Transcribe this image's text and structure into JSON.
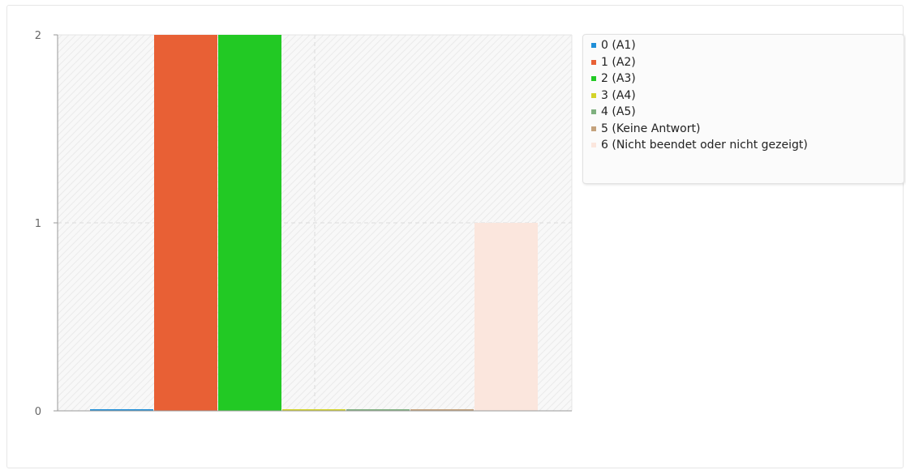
{
  "chart_data": {
    "type": "bar",
    "categories": [
      "0 (A1)",
      "1 (A2)",
      "2 (A3)",
      "3 (A4)",
      "4 (A5)",
      "5 (Keine Antwort)",
      "6 (Nicht beendet oder nicht gezeigt)"
    ],
    "values": [
      0,
      2,
      2,
      0,
      0,
      0,
      1
    ],
    "colors": [
      "#1f8fd8",
      "#e86035",
      "#22c924",
      "#d3d329",
      "#7fb07f",
      "#c4a27c",
      "#fbe6dd"
    ],
    "ylim": [
      0,
      2
    ],
    "yticks": [
      "0",
      "1",
      "2"
    ],
    "grid": true,
    "legend_position": "right",
    "title": "",
    "xlabel": "",
    "ylabel": ""
  }
}
